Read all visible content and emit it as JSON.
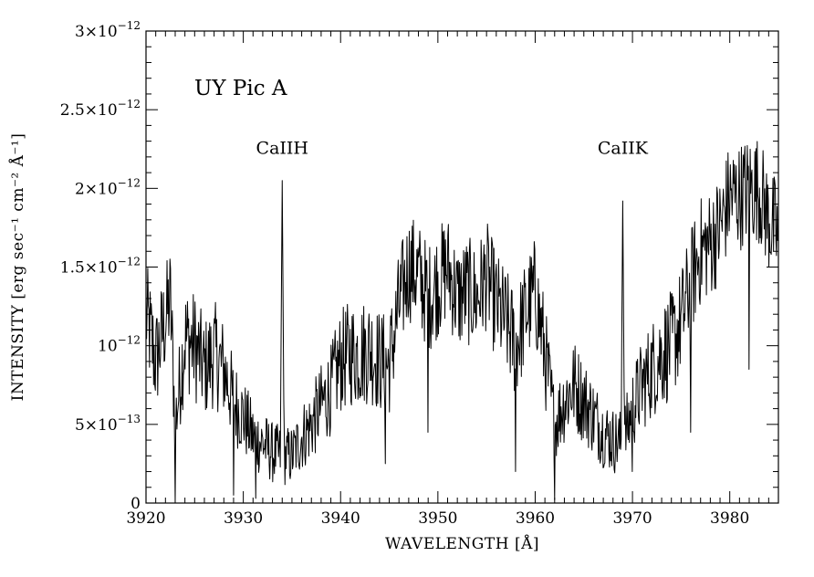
{
  "chart_data": {
    "type": "line",
    "title": "UY Pic A",
    "xlabel": "WAVELENGTH [Å]",
    "ylabel": "INTENSITY [erg sec⁻¹ cm⁻² Å⁻¹]",
    "xlim": [
      3920,
      3985
    ],
    "ylim": [
      0,
      3e-12
    ],
    "grid": false,
    "x_ticks": [
      {
        "value": 3920,
        "label": "3920"
      },
      {
        "value": 3930,
        "label": "3930"
      },
      {
        "value": 3940,
        "label": "3940"
      },
      {
        "value": 3950,
        "label": "3950"
      },
      {
        "value": 3960,
        "label": "3960"
      },
      {
        "value": 3970,
        "label": "3970"
      },
      {
        "value": 3980,
        "label": "3980"
      }
    ],
    "y_ticks": [
      {
        "value": 0,
        "mantissa": "0",
        "exponent": ""
      },
      {
        "value": 5e-13,
        "mantissa": "5×10",
        "exponent": "−13"
      },
      {
        "value": 1e-12,
        "mantissa": "10",
        "exponent": "−12"
      },
      {
        "value": 1.5e-12,
        "mantissa": "1.5×10",
        "exponent": "−12"
      },
      {
        "value": 2e-12,
        "mantissa": "2×10",
        "exponent": "−12"
      },
      {
        "value": 2.5e-12,
        "mantissa": "2.5×10",
        "exponent": "−12"
      },
      {
        "value": 3e-12,
        "mantissa": "3×10",
        "exponent": "−12"
      }
    ],
    "annotations": [
      {
        "text": "CaIIH",
        "x": 3934,
        "y": 2.22e-12
      },
      {
        "text": "CaIIK",
        "x": 3969,
        "y": 2.22e-12
      }
    ],
    "series": [
      {
        "color": "#000000",
        "envelope_points": [
          [
            3920.0,
            1.2e-12
          ],
          [
            3921.0,
            9e-13
          ],
          [
            3922.5,
            1.3e-12
          ],
          [
            3923.0,
            5e-13
          ],
          [
            3924.0,
            1.05e-12
          ],
          [
            3925.0,
            1e-12
          ],
          [
            3926.0,
            8.5e-13
          ],
          [
            3927.0,
            9.5e-13
          ],
          [
            3928.0,
            8.5e-13
          ],
          [
            3929.0,
            6.5e-13
          ],
          [
            3930.0,
            5.5e-13
          ],
          [
            3931.0,
            4.2e-13
          ],
          [
            3932.0,
            3.8e-13
          ],
          [
            3933.0,
            3.2e-13
          ],
          [
            3934.0,
            3e-13
          ],
          [
            3935.0,
            3e-13
          ],
          [
            3936.0,
            4.2e-13
          ],
          [
            3937.0,
            5e-13
          ],
          [
            3938.0,
            6.2e-13
          ],
          [
            3939.0,
            7.2e-13
          ],
          [
            3940.0,
            9e-13
          ],
          [
            3941.0,
            9.5e-13
          ],
          [
            3942.0,
            9.5e-13
          ],
          [
            3943.0,
            9.8e-13
          ],
          [
            3944.0,
            9e-13
          ],
          [
            3945.0,
            8.8e-13
          ],
          [
            3946.0,
            1.25e-12
          ],
          [
            3947.0,
            1.5e-12
          ],
          [
            3948.0,
            1.45e-12
          ],
          [
            3949.0,
            1.3e-12
          ],
          [
            3950.0,
            1.4e-12
          ],
          [
            3951.0,
            1.5e-12
          ],
          [
            3952.0,
            1.3e-12
          ],
          [
            3953.0,
            1.35e-12
          ],
          [
            3954.0,
            1.3e-12
          ],
          [
            3955.0,
            1.45e-12
          ],
          [
            3956.0,
            1.25e-12
          ],
          [
            3957.0,
            1.15e-12
          ],
          [
            3958.0,
            1e-12
          ],
          [
            3959.0,
            1.2e-12
          ],
          [
            3960.0,
            1.35e-12
          ],
          [
            3961.0,
            9.5e-13
          ],
          [
            3962.0,
            5e-13
          ],
          [
            3963.0,
            6.5e-13
          ],
          [
            3964.0,
            7.5e-13
          ],
          [
            3965.0,
            6.5e-13
          ],
          [
            3966.0,
            5.5e-13
          ],
          [
            3967.0,
            4.5e-13
          ],
          [
            3968.0,
            4e-13
          ],
          [
            3969.0,
            3.8e-13
          ],
          [
            3970.0,
            6e-13
          ],
          [
            3971.0,
            7.5e-13
          ],
          [
            3972.0,
            8.5e-13
          ],
          [
            3973.0,
            9.5e-13
          ],
          [
            3974.0,
            1e-12
          ],
          [
            3975.0,
            1.15e-12
          ],
          [
            3976.0,
            1.4e-12
          ],
          [
            3977.0,
            1.6e-12
          ],
          [
            3978.0,
            1.65e-12
          ],
          [
            3979.0,
            1.75e-12
          ],
          [
            3980.0,
            1.95e-12
          ],
          [
            3981.0,
            1.95e-12
          ],
          [
            3982.0,
            2e-12
          ],
          [
            3983.0,
            2e-12
          ],
          [
            3984.0,
            1.8e-12
          ],
          [
            3985.0,
            1.7e-12
          ]
        ],
        "emission_lines": [
          {
            "x": 3934.0,
            "peak": 2.05e-12,
            "width": 0.18
          },
          {
            "x": 3969.0,
            "peak": 1.92e-12,
            "width": 0.16
          }
        ],
        "absorption_features": [
          {
            "x": 3923.0,
            "min": 0.0
          },
          {
            "x": 3929.0,
            "min": 5e-14
          },
          {
            "x": 3931.3,
            "min": 3e-14
          },
          {
            "x": 3944.6,
            "min": 2.5e-13
          },
          {
            "x": 3949.0,
            "min": 4.5e-13
          },
          {
            "x": 3958.0,
            "min": 2e-13
          },
          {
            "x": 3962.0,
            "min": 2e-14
          },
          {
            "x": 3970.0,
            "min": 2e-13
          },
          {
            "x": 3976.0,
            "min": 4.5e-13
          },
          {
            "x": 3982.0,
            "min": 8.5e-13
          }
        ],
        "noise_amplitude": 3.5e-13,
        "sample_step": 0.06
      }
    ]
  }
}
